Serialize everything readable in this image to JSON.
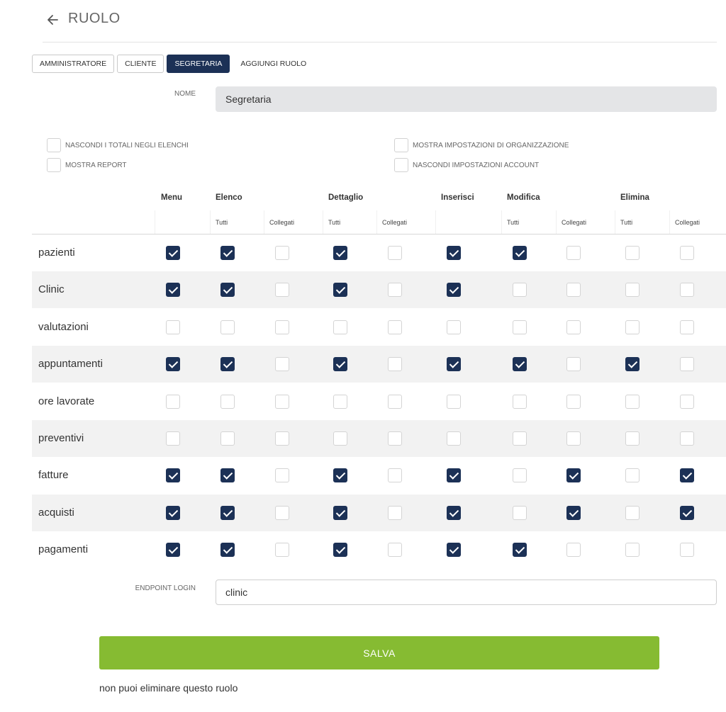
{
  "header": {
    "title": "RUOLO",
    "back_icon": "arrow-left-icon"
  },
  "tabs": [
    {
      "label": "AMMINISTRATORE",
      "active": false,
      "plain": false
    },
    {
      "label": "CLIENTE",
      "active": false,
      "plain": false
    },
    {
      "label": "SEGRETARIA",
      "active": true,
      "plain": false
    },
    {
      "label": "AGGIUNGI RUOLO",
      "active": false,
      "plain": true
    }
  ],
  "name_field": {
    "label": "NOME",
    "value": "Segretaria"
  },
  "options": [
    {
      "label": "NASCONDI I TOTALI NEGLI ELENCHI",
      "checked": false
    },
    {
      "label": "MOSTRA REPORT",
      "checked": false
    },
    {
      "label": "MOSTRA IMPOSTAZIONI DI ORGANIZZAZIONE",
      "checked": false
    },
    {
      "label": "NASCONDI IMPOSTAZIONI ACCOUNT",
      "checked": false
    }
  ],
  "permissions": {
    "groups": [
      "Menu",
      "Elenco",
      "Dettaglio",
      "Inserisci",
      "Modifica",
      "Elimina"
    ],
    "subcolumns": [
      "",
      "Tutti",
      "Collegati",
      "Tutti",
      "Collegati",
      "",
      "Tutti",
      "Collegati",
      "Tutti",
      "Collegati"
    ],
    "rows": [
      {
        "label": "pazienti",
        "values": [
          true,
          true,
          false,
          true,
          false,
          true,
          true,
          false,
          false,
          false
        ]
      },
      {
        "label": "Clinic",
        "values": [
          true,
          true,
          false,
          true,
          false,
          true,
          false,
          false,
          false,
          false
        ]
      },
      {
        "label": "valutazioni",
        "values": [
          false,
          false,
          false,
          false,
          false,
          false,
          false,
          false,
          false,
          false
        ]
      },
      {
        "label": "appuntamenti",
        "values": [
          true,
          true,
          false,
          true,
          false,
          true,
          true,
          false,
          true,
          false
        ]
      },
      {
        "label": "ore lavorate",
        "values": [
          false,
          false,
          false,
          false,
          false,
          false,
          false,
          false,
          false,
          false
        ]
      },
      {
        "label": "preventivi",
        "values": [
          false,
          false,
          false,
          false,
          false,
          false,
          false,
          false,
          false,
          false
        ]
      },
      {
        "label": "fatture",
        "values": [
          true,
          true,
          false,
          true,
          false,
          true,
          false,
          true,
          false,
          true
        ]
      },
      {
        "label": "acquisti",
        "values": [
          true,
          true,
          false,
          true,
          false,
          true,
          false,
          true,
          false,
          true
        ]
      },
      {
        "label": "pagamenti",
        "values": [
          true,
          true,
          false,
          true,
          false,
          true,
          true,
          false,
          false,
          false
        ]
      }
    ]
  },
  "endpoint_field": {
    "label": "ENDPOINT LOGIN",
    "value": "clinic"
  },
  "save_label": "SALVA",
  "note": "non puoi eliminare questo ruolo",
  "colors": {
    "accent": "#1c3156",
    "save": "#86bb32"
  }
}
